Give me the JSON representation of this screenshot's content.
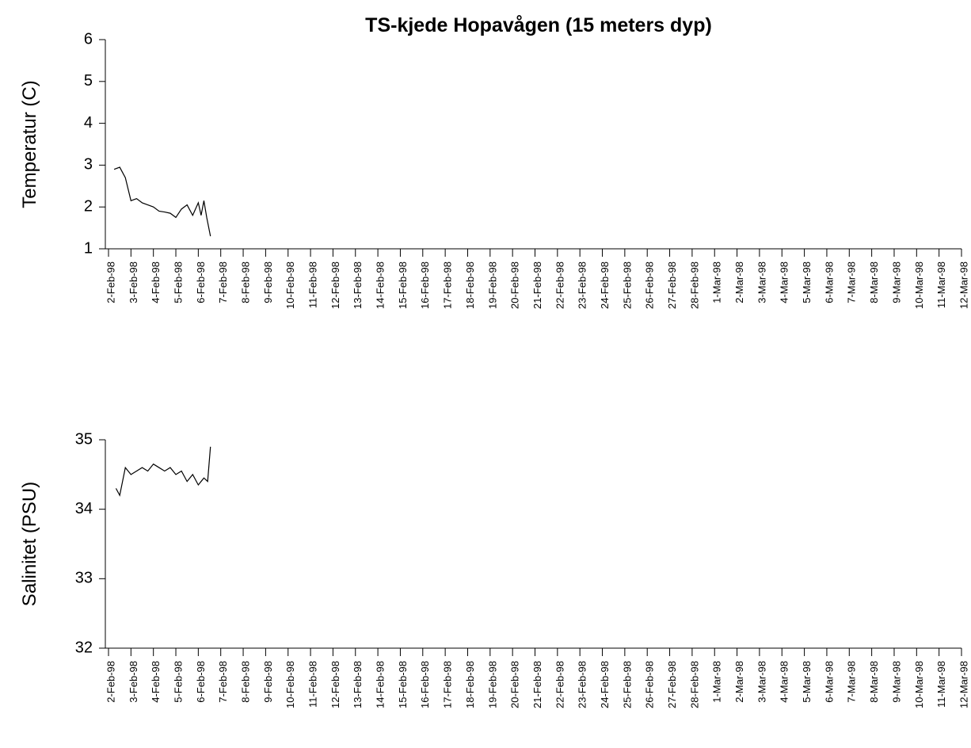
{
  "chart_data": [
    {
      "type": "line",
      "title": "TS-kjede Hopavågen (15 meters dyp)",
      "ylabel": "Temperatur (C)",
      "x": [
        "1998-02-02T06:00",
        "1998-02-02T12:00",
        "1998-02-02T18:00",
        "1998-02-03T00:00",
        "1998-02-03T06:00",
        "1998-02-03T12:00",
        "1998-02-03T18:00",
        "1998-02-04T00:00",
        "1998-02-04T06:00",
        "1998-02-04T12:00",
        "1998-02-04T18:00",
        "1998-02-05T00:00",
        "1998-02-05T06:00",
        "1998-02-05T12:00",
        "1998-02-05T18:00",
        "1998-02-06T00:00",
        "1998-02-06T03:00",
        "1998-02-06T06:00",
        "1998-02-06T09:00",
        "1998-02-06T13:00"
      ],
      "series": [
        {
          "name": "Temperatur",
          "color": "#000000",
          "values": [
            2.9,
            2.95,
            2.7,
            2.15,
            2.2,
            2.1,
            2.05,
            2.0,
            1.9,
            1.88,
            1.85,
            1.75,
            1.95,
            2.05,
            1.8,
            2.1,
            1.8,
            2.15,
            1.75,
            1.3
          ]
        }
      ],
      "xlim": [
        "1998-02-02",
        "1998-03-12"
      ],
      "xticks": [
        {
          "value": "1998-02-02",
          "label": "2-Feb-98"
        },
        {
          "value": "1998-02-03",
          "label": "3-Feb-98"
        },
        {
          "value": "1998-02-04",
          "label": "4-Feb-98"
        },
        {
          "value": "1998-02-05",
          "label": "5-Feb-98"
        },
        {
          "value": "1998-02-06",
          "label": "6-Feb-98"
        },
        {
          "value": "1998-02-07",
          "label": "7-Feb-98"
        },
        {
          "value": "1998-02-08",
          "label": "8-Feb-98"
        },
        {
          "value": "1998-02-09",
          "label": "9-Feb-98"
        },
        {
          "value": "1998-02-10",
          "label": "10-Feb-98"
        },
        {
          "value": "1998-02-11",
          "label": "11-Feb-98"
        },
        {
          "value": "1998-02-12",
          "label": "12-Feb-98"
        },
        {
          "value": "1998-02-13",
          "label": "13-Feb-98"
        },
        {
          "value": "1998-02-14",
          "label": "14-Feb-98"
        },
        {
          "value": "1998-02-15",
          "label": "15-Feb-98"
        },
        {
          "value": "1998-02-16",
          "label": "16-Feb-98"
        },
        {
          "value": "1998-02-17",
          "label": "17-Feb-98"
        },
        {
          "value": "1998-02-18",
          "label": "18-Feb-98"
        },
        {
          "value": "1998-02-19",
          "label": "19-Feb-98"
        },
        {
          "value": "1998-02-20",
          "label": "20-Feb-98"
        },
        {
          "value": "1998-02-21",
          "label": "21-Feb-98"
        },
        {
          "value": "1998-02-22",
          "label": "22-Feb-98"
        },
        {
          "value": "1998-02-23",
          "label": "23-Feb-98"
        },
        {
          "value": "1998-02-24",
          "label": "24-Feb-98"
        },
        {
          "value": "1998-02-25",
          "label": "25-Feb-98"
        },
        {
          "value": "1998-02-26",
          "label": "26-Feb-98"
        },
        {
          "value": "1998-02-27",
          "label": "27-Feb-98"
        },
        {
          "value": "1998-02-28",
          "label": "28-Feb-98"
        },
        {
          "value": "1998-03-01",
          "label": "1-Mar-98"
        },
        {
          "value": "1998-03-02",
          "label": "2-Mar-98"
        },
        {
          "value": "1998-03-03",
          "label": "3-Mar-98"
        },
        {
          "value": "1998-03-04",
          "label": "4-Mar-98"
        },
        {
          "value": "1998-03-05",
          "label": "5-Mar-98"
        },
        {
          "value": "1998-03-06",
          "label": "6-Mar-98"
        },
        {
          "value": "1998-03-07",
          "label": "7-Mar-98"
        },
        {
          "value": "1998-03-08",
          "label": "8-Mar-98"
        },
        {
          "value": "1998-03-09",
          "label": "9-Mar-98"
        },
        {
          "value": "1998-03-10",
          "label": "10-Mar-98"
        },
        {
          "value": "1998-03-11",
          "label": "11-Mar-98"
        },
        {
          "value": "1998-03-12",
          "label": "12-Mar-98"
        }
      ],
      "ylim": [
        1,
        6
      ],
      "yticks": [
        1,
        2,
        3,
        4,
        5,
        6
      ]
    },
    {
      "type": "line",
      "ylabel": "Salinitet (PSU)",
      "x": [
        "1998-02-02T08:00",
        "1998-02-02T12:00",
        "1998-02-02T18:00",
        "1998-02-03T00:00",
        "1998-02-03T06:00",
        "1998-02-03T12:00",
        "1998-02-03T18:00",
        "1998-02-04T00:00",
        "1998-02-04T06:00",
        "1998-02-04T12:00",
        "1998-02-04T18:00",
        "1998-02-05T00:00",
        "1998-02-05T06:00",
        "1998-02-05T12:00",
        "1998-02-05T18:00",
        "1998-02-06T00:00",
        "1998-02-06T06:00",
        "1998-02-06T10:00",
        "1998-02-06T13:00"
      ],
      "series": [
        {
          "name": "Salinitet",
          "color": "#000000",
          "values": [
            34.3,
            34.2,
            34.6,
            34.5,
            34.55,
            34.6,
            34.55,
            34.65,
            34.6,
            34.55,
            34.6,
            34.5,
            34.55,
            34.4,
            34.5,
            34.35,
            34.45,
            34.4,
            34.9
          ]
        }
      ],
      "xlim": [
        "1998-02-02",
        "1998-03-12"
      ],
      "xticks": [
        {
          "value": "1998-02-02",
          "label": "2-Feb-98"
        },
        {
          "value": "1998-02-03",
          "label": "3-Feb-98"
        },
        {
          "value": "1998-02-04",
          "label": "4-Feb-98"
        },
        {
          "value": "1998-02-05",
          "label": "5-Feb-98"
        },
        {
          "value": "1998-02-06",
          "label": "6-Feb-98"
        },
        {
          "value": "1998-02-07",
          "label": "7-Feb-98"
        },
        {
          "value": "1998-02-08",
          "label": "8-Feb-98"
        },
        {
          "value": "1998-02-09",
          "label": "9-Feb-98"
        },
        {
          "value": "1998-02-10",
          "label": "10-Feb-98"
        },
        {
          "value": "1998-02-11",
          "label": "11-Feb-98"
        },
        {
          "value": "1998-02-12",
          "label": "12-Feb-98"
        },
        {
          "value": "1998-02-13",
          "label": "13-Feb-98"
        },
        {
          "value": "1998-02-14",
          "label": "14-Feb-98"
        },
        {
          "value": "1998-02-15",
          "label": "15-Feb-98"
        },
        {
          "value": "1998-02-16",
          "label": "16-Feb-98"
        },
        {
          "value": "1998-02-17",
          "label": "17-Feb-98"
        },
        {
          "value": "1998-02-18",
          "label": "18-Feb-98"
        },
        {
          "value": "1998-02-19",
          "label": "19-Feb-98"
        },
        {
          "value": "1998-02-20",
          "label": "20-Feb-98"
        },
        {
          "value": "1998-02-21",
          "label": "21-Feb-98"
        },
        {
          "value": "1998-02-22",
          "label": "22-Feb-98"
        },
        {
          "value": "1998-02-23",
          "label": "23-Feb-98"
        },
        {
          "value": "1998-02-24",
          "label": "24-Feb-98"
        },
        {
          "value": "1998-02-25",
          "label": "25-Feb-98"
        },
        {
          "value": "1998-02-26",
          "label": "26-Feb-98"
        },
        {
          "value": "1998-02-27",
          "label": "27-Feb-98"
        },
        {
          "value": "1998-02-28",
          "label": "28-Feb-98"
        },
        {
          "value": "1998-03-01",
          "label": "1-Mar-98"
        },
        {
          "value": "1998-03-02",
          "label": "2-Mar-98"
        },
        {
          "value": "1998-03-03",
          "label": "3-Mar-98"
        },
        {
          "value": "1998-03-04",
          "label": "4-Mar-98"
        },
        {
          "value": "1998-03-05",
          "label": "5-Mar-98"
        },
        {
          "value": "1998-03-06",
          "label": "6-Mar-98"
        },
        {
          "value": "1998-03-07",
          "label": "7-Mar-98"
        },
        {
          "value": "1998-03-08",
          "label": "8-Mar-98"
        },
        {
          "value": "1998-03-09",
          "label": "9-Mar-98"
        },
        {
          "value": "1998-03-10",
          "label": "10-Mar-98"
        },
        {
          "value": "1998-03-11",
          "label": "11-Mar-98"
        },
        {
          "value": "1998-03-12",
          "label": "12-Mar-98"
        }
      ],
      "ylim": [
        32,
        35
      ],
      "yticks": [
        32,
        33,
        34,
        35
      ]
    }
  ]
}
